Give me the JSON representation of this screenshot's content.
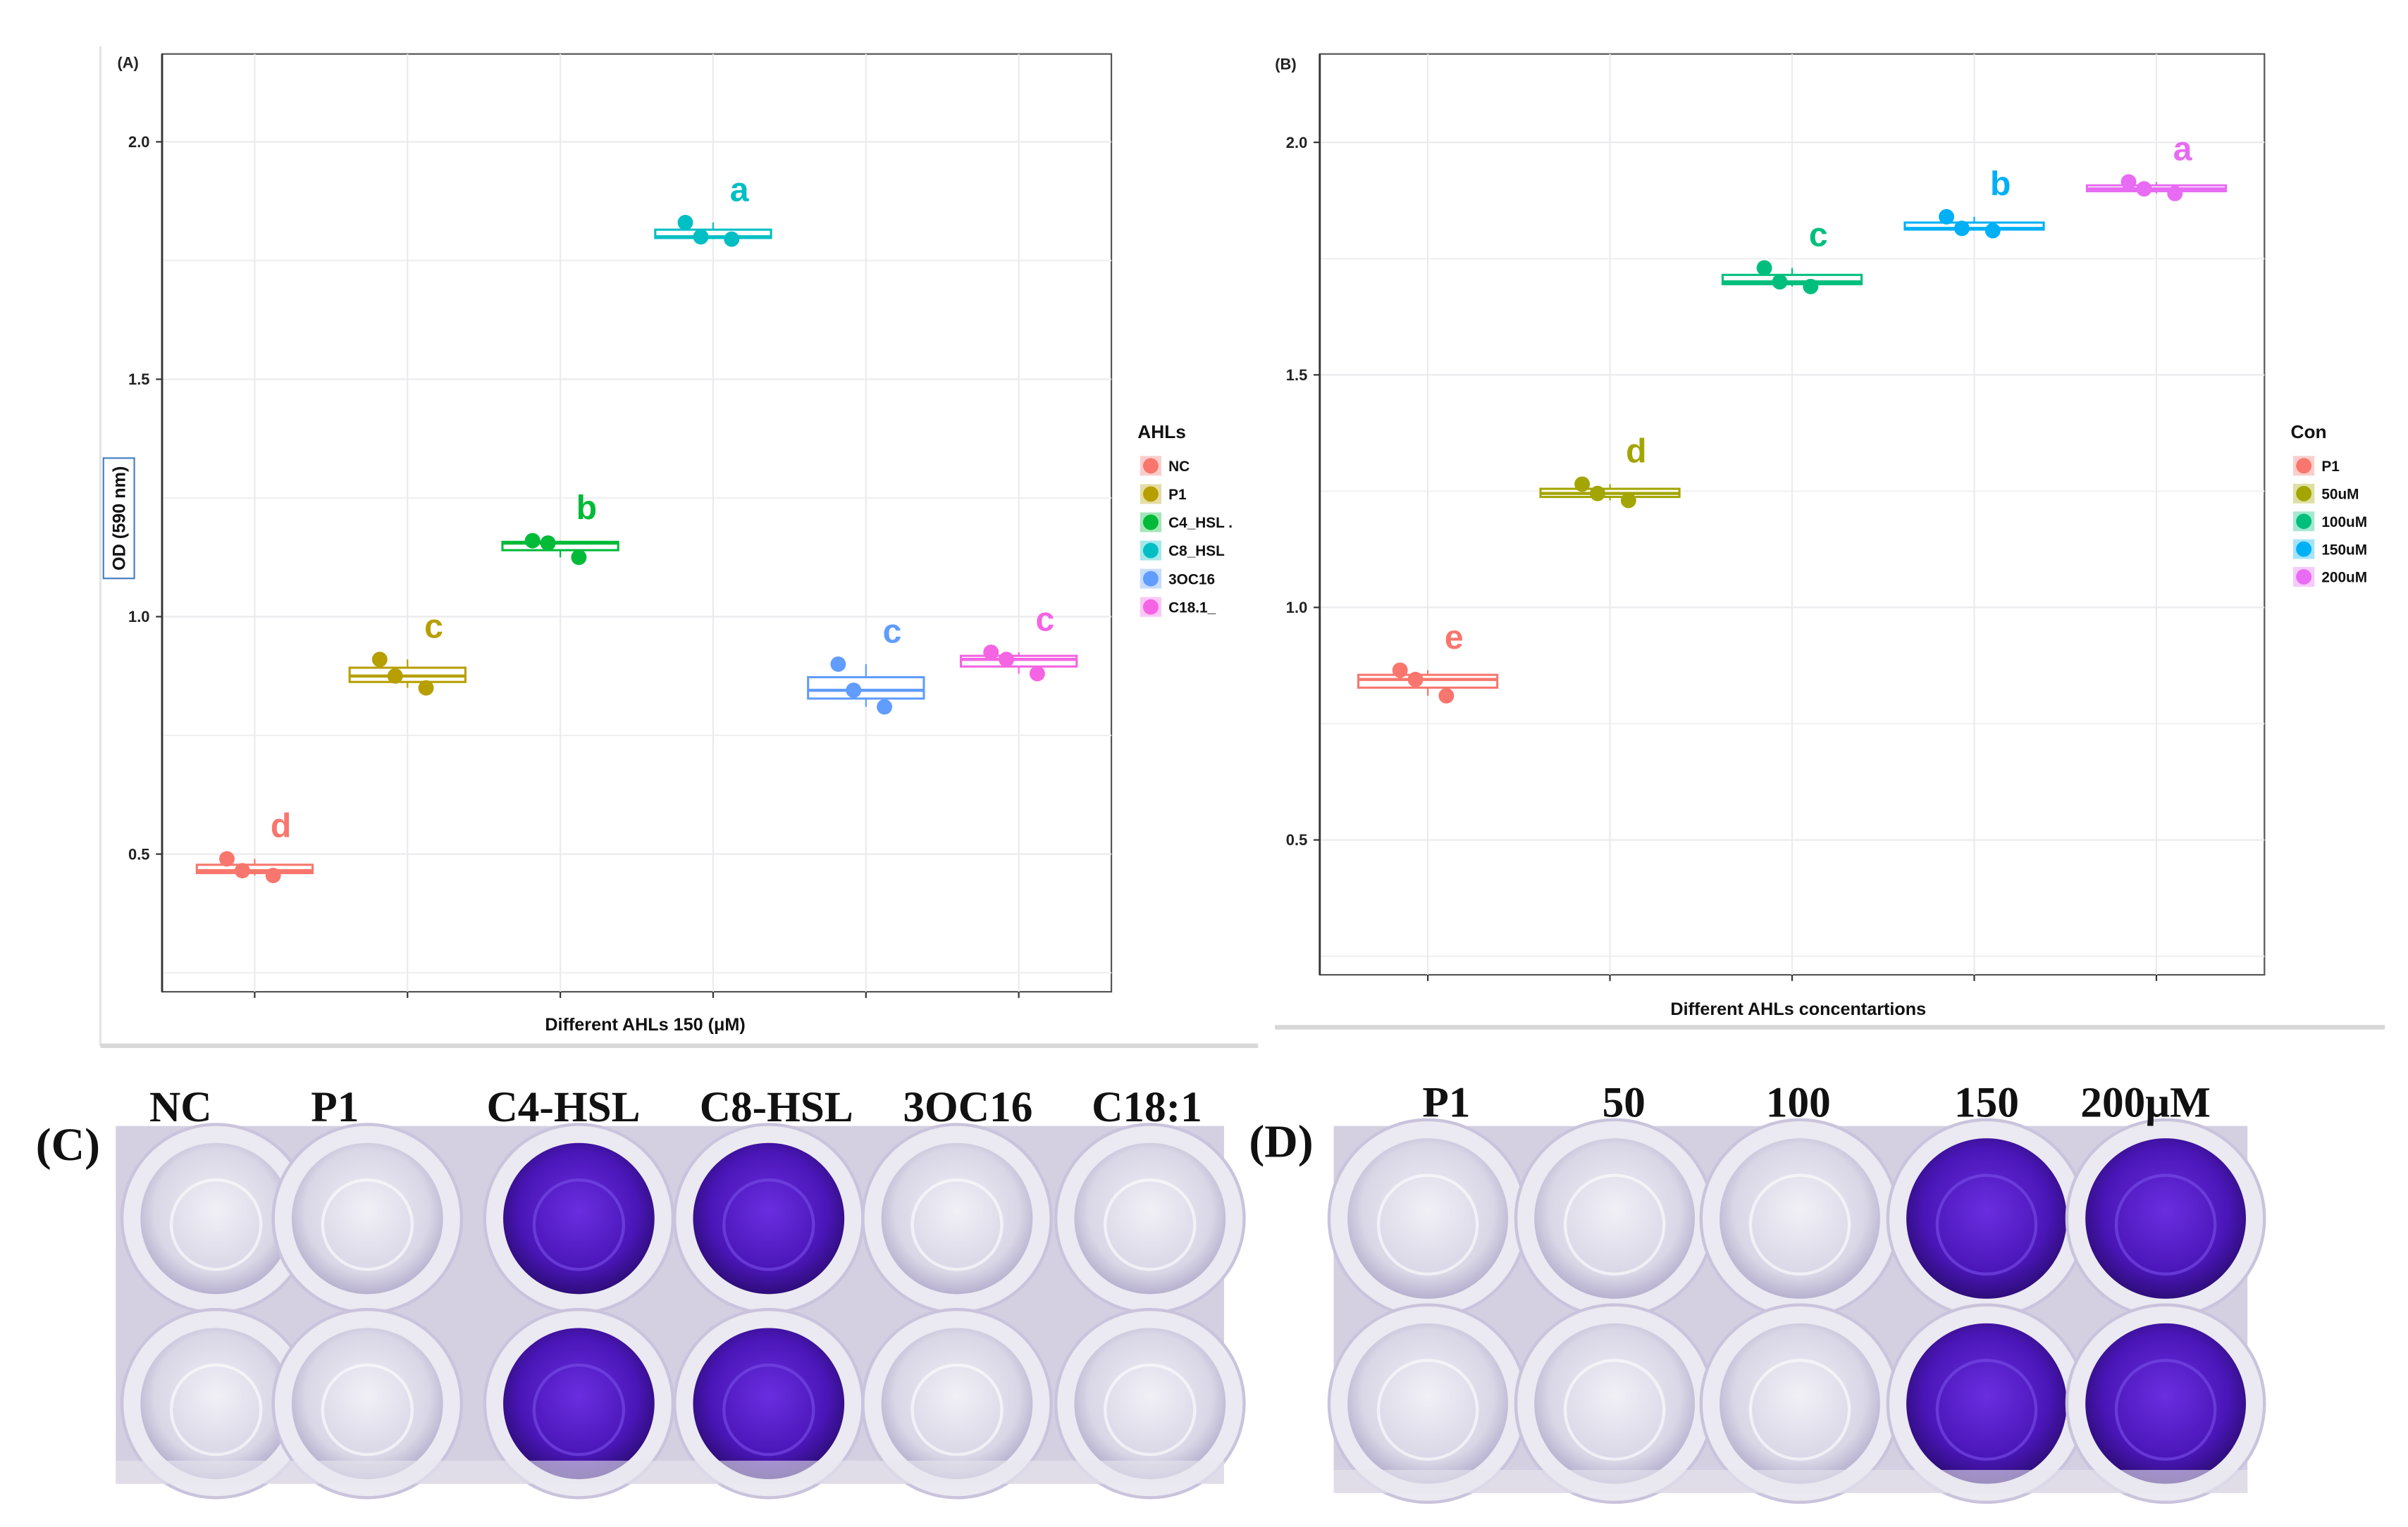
{
  "chart_data": [
    {
      "type": "box",
      "panel": "(A)",
      "xlabel": "Different AHLs 150 (μM)",
      "ylabel": "OD (590 nm)",
      "ylim": [
        0.21,
        2.185
      ],
      "yticks": [
        "0.5",
        "1.0",
        "1.5",
        "2.0"
      ],
      "ytick_values": [
        0.5,
        1.0,
        1.5,
        2.0
      ],
      "grid": true,
      "legend_title": "AHLs",
      "legend_position": "right",
      "groups": [
        {
          "name": "NC",
          "color": "#F8766D",
          "values": [
            0.49,
            0.465,
            0.455
          ],
          "letter": "d"
        },
        {
          "name": "P1",
          "color": "#B79F00",
          "values": [
            0.91,
            0.875,
            0.85
          ],
          "letter": "c"
        },
        {
          "name": "C4_HSL .",
          "color": "#00BA38",
          "values": [
            1.16,
            1.155,
            1.125
          ],
          "letter": "b"
        },
        {
          "name": "C8_HSL",
          "color": "#00BFC4",
          "values": [
            1.83,
            1.8,
            1.795
          ],
          "letter": "a"
        },
        {
          "name": "3OC16",
          "color": "#619CFF",
          "values": [
            0.9,
            0.845,
            0.81
          ],
          "letter": "c"
        },
        {
          "name": "C18.1_",
          "color": "#F564E3",
          "values": [
            0.925,
            0.91,
            0.88
          ],
          "letter": "c"
        }
      ]
    },
    {
      "type": "box",
      "panel": "(B)",
      "xlabel": "Different AHLs concentartions",
      "ylabel": "",
      "ylim": [
        0.21,
        2.19
      ],
      "yticks": [
        "0.5",
        "1.0",
        "1.5",
        "2.0"
      ],
      "ytick_values": [
        0.5,
        1.0,
        1.5,
        2.0
      ],
      "grid": true,
      "legend_title": "Con",
      "legend_position": "right",
      "groups": [
        {
          "name": "P1",
          "color": "#F8766D",
          "values": [
            0.865,
            0.845,
            0.81
          ],
          "letter": "e"
        },
        {
          "name": "50uM",
          "color": "#A3A500",
          "values": [
            1.265,
            1.245,
            1.23
          ],
          "letter": "d"
        },
        {
          "name": "100uM",
          "color": "#00BF7D",
          "values": [
            1.73,
            1.7,
            1.69
          ],
          "letter": "c"
        },
        {
          "name": "150uM",
          "color": "#00B0F6",
          "values": [
            1.84,
            1.815,
            1.81
          ],
          "letter": "b"
        },
        {
          "name": "200uM",
          "color": "#E76BF3",
          "values": [
            1.915,
            1.9,
            1.89
          ],
          "letter": "a"
        }
      ]
    }
  ],
  "photos": [
    {
      "panel": "(C)",
      "labels": [
        "NC",
        "P1",
        "C4-HSL",
        "C8-HSL",
        "3OC16",
        "C18:1"
      ],
      "stained": [
        false,
        false,
        true,
        true,
        false,
        false
      ]
    },
    {
      "panel": "(D)",
      "labels": [
        "P1",
        "50",
        "100",
        "150",
        "200μM"
      ],
      "stained": [
        false,
        false,
        false,
        true,
        true
      ]
    }
  ]
}
